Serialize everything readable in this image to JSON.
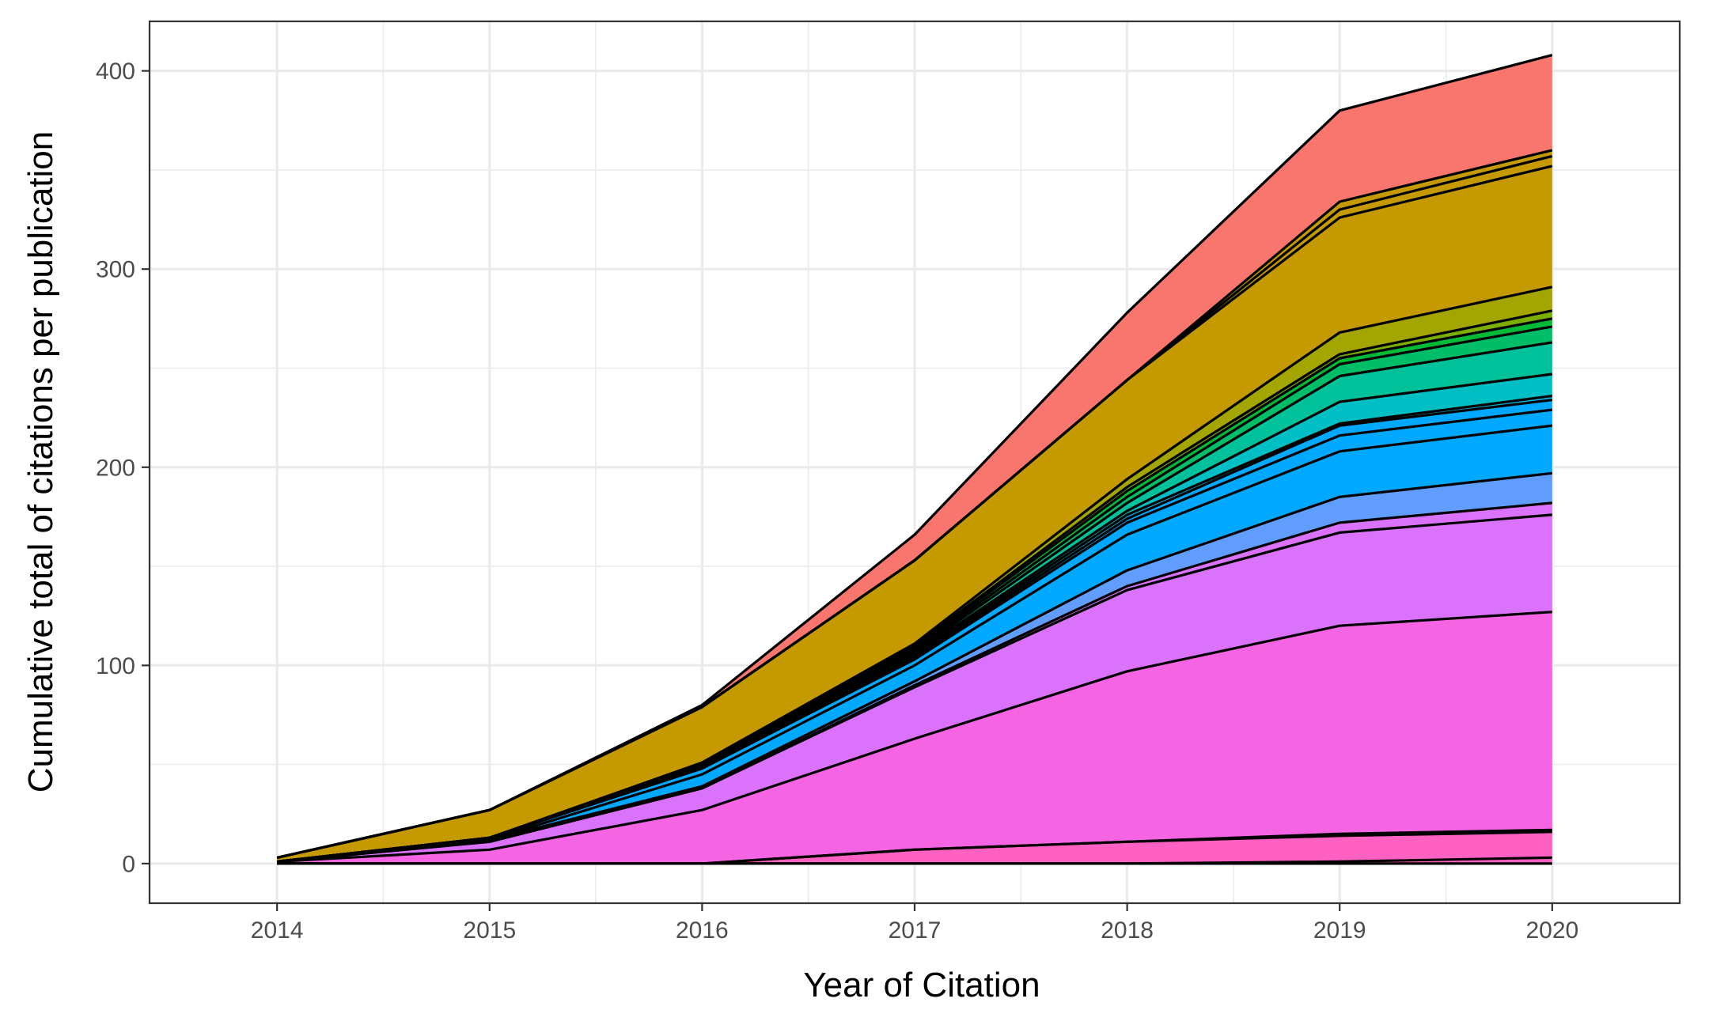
{
  "chart_data": {
    "type": "area",
    "stacked": true,
    "title": "",
    "xlabel": "Year of Citation",
    "ylabel": "Cumulative total of citations per publication",
    "x": [
      2014,
      2015,
      2016,
      2017,
      2018,
      2019,
      2020
    ],
    "xlim": [
      2013.4,
      2020.6
    ],
    "ylim": [
      -20,
      425
    ],
    "y_ticks": [
      0,
      100,
      200,
      300,
      400
    ],
    "x_ticks": [
      2014,
      2015,
      2016,
      2017,
      2018,
      2019,
      2020
    ],
    "grid": true,
    "legend": "none",
    "series_outline_color": "#000000",
    "series": [
      {
        "color": "#FF61C3",
        "values": [
          0,
          0,
          0,
          0,
          0,
          1,
          3
        ]
      },
      {
        "color": "#FF61C3",
        "values": [
          0,
          0,
          0,
          7,
          11,
          13,
          13
        ]
      },
      {
        "color": "#FF61C3",
        "values": [
          0,
          0,
          0,
          0,
          0,
          1,
          1
        ]
      },
      {
        "color": "#F564E3",
        "values": [
          1,
          7,
          27,
          56,
          86,
          105,
          110
        ]
      },
      {
        "color": "#DB72FB",
        "values": [
          0,
          4,
          11,
          26,
          41,
          47,
          49
        ]
      },
      {
        "color": "#DB72FB",
        "values": [
          0,
          0,
          0,
          1,
          2,
          5,
          6
        ]
      },
      {
        "color": "#619CFF",
        "values": [
          0,
          1,
          1,
          2,
          8,
          13,
          15
        ]
      },
      {
        "color": "#00A9FF",
        "values": [
          0,
          0,
          6,
          8,
          18,
          23,
          24
        ]
      },
      {
        "color": "#00A9FF",
        "values": [
          0,
          1,
          3,
          3,
          6,
          8,
          8
        ]
      },
      {
        "color": "#00A9FF",
        "values": [
          0,
          0,
          0,
          1,
          2,
          5,
          5
        ]
      },
      {
        "color": "#00B8E7",
        "values": [
          0,
          0,
          1,
          1,
          2,
          1,
          2
        ]
      },
      {
        "color": "#00BFC4",
        "values": [
          0,
          0,
          1,
          1,
          2,
          11,
          11
        ]
      },
      {
        "color": "#00C19A",
        "values": [
          0,
          0,
          0,
          1,
          4,
          13,
          16
        ]
      },
      {
        "color": "#00BE67",
        "values": [
          0,
          0,
          0,
          1,
          3,
          6,
          8
        ]
      },
      {
        "color": "#00BA38",
        "values": [
          0,
          0,
          0,
          1,
          3,
          3,
          4
        ]
      },
      {
        "color": "#7CAE00",
        "values": [
          0,
          0,
          0,
          1,
          2,
          2,
          4
        ]
      },
      {
        "color": "#A3A500",
        "values": [
          0,
          0,
          1,
          1,
          4,
          11,
          12
        ]
      },
      {
        "color": "#C49A00",
        "values": [
          2,
          14,
          28,
          42,
          50,
          58,
          61
        ]
      },
      {
        "color": "#C49A00",
        "values": [
          0,
          0,
          0,
          0,
          0,
          4,
          5
        ]
      },
      {
        "color": "#C49A00",
        "values": [
          0,
          0,
          0,
          0,
          0,
          4,
          3
        ]
      },
      {
        "color": "#F8766D",
        "values": [
          0,
          0,
          1,
          13,
          34,
          46,
          48
        ]
      }
    ]
  }
}
